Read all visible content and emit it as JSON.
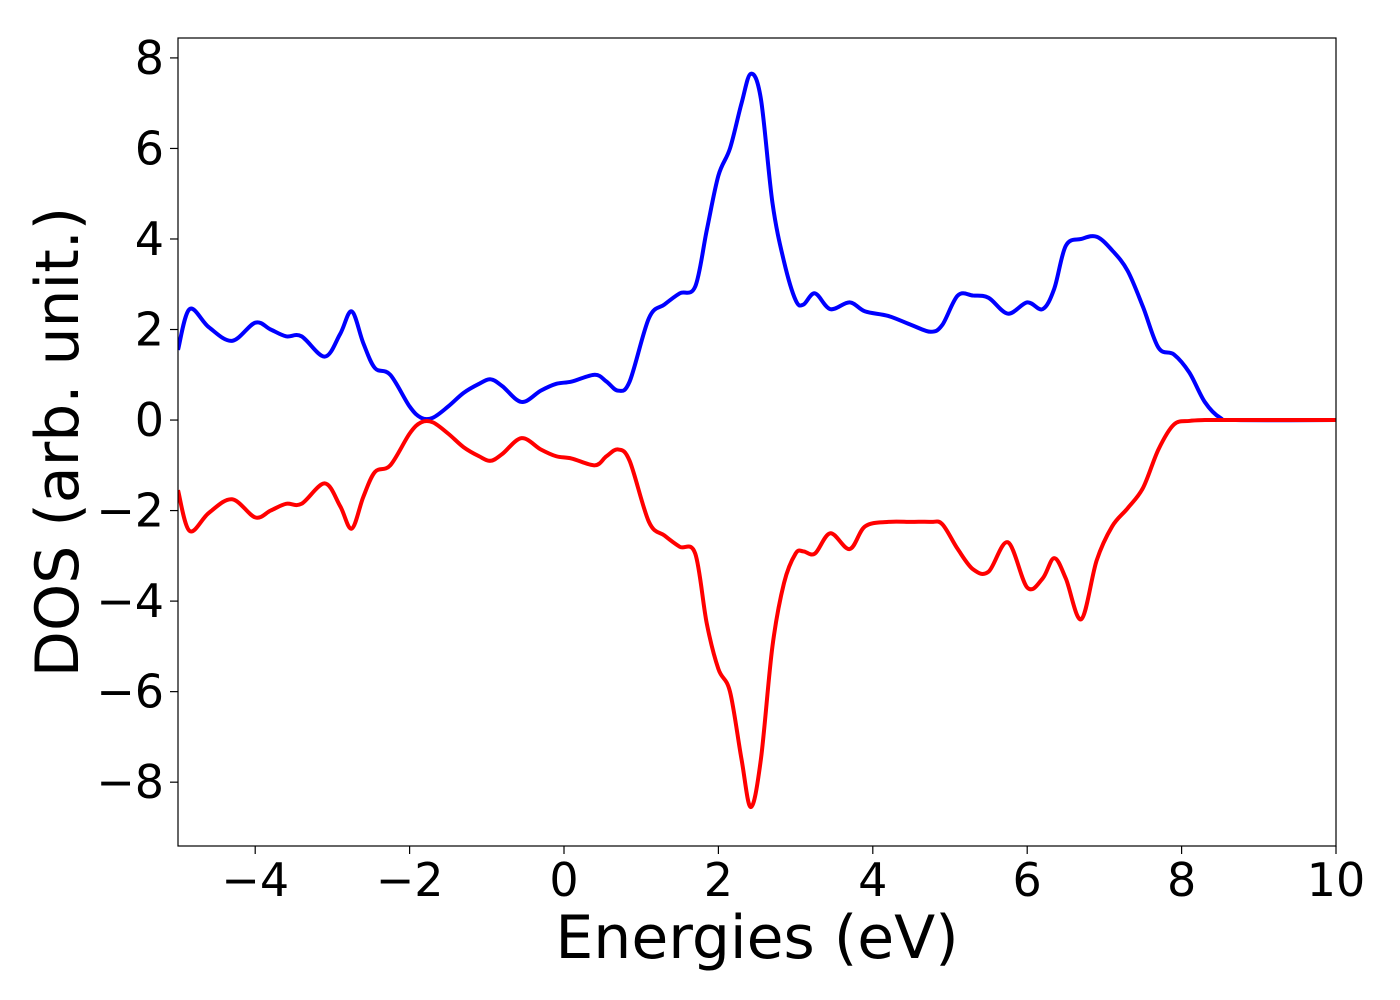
{
  "chart_data": {
    "type": "line",
    "xlabel": "Energies (eV)",
    "ylabel": "DOS (arb. unit.)",
    "xlim": [
      -5,
      10
    ],
    "ylim": [
      -9.41,
      8.44
    ],
    "xticks": [
      {
        "value": -4,
        "label": "−4"
      },
      {
        "value": -2,
        "label": "−2"
      },
      0,
      2,
      4,
      6,
      8,
      10
    ],
    "yticks": [
      {
        "value": -8,
        "label": "−8"
      },
      {
        "value": -6,
        "label": "−6"
      },
      {
        "value": -4,
        "label": "−4"
      },
      {
        "value": -2,
        "label": "−2"
      },
      0,
      2,
      4,
      6,
      8
    ],
    "grid": false,
    "x": [
      -5,
      -4.85,
      -4.6,
      -4.3,
      -4.0,
      -3.8,
      -3.6,
      -3.4,
      -3.1,
      -2.9,
      -2.75,
      -2.6,
      -2.45,
      -2.25,
      -2.0,
      -1.85,
      -1.7,
      -1.5,
      -1.3,
      -1.1,
      -0.95,
      -0.8,
      -0.55,
      -0.3,
      -0.1,
      0.1,
      0.4,
      0.55,
      0.7,
      0.85,
      1.1,
      1.3,
      1.5,
      1.7,
      1.85,
      2.0,
      2.15,
      2.3,
      2.42,
      2.55,
      2.7,
      2.85,
      3.0,
      3.1,
      3.25,
      3.45,
      3.7,
      3.9,
      4.2,
      4.5,
      4.75,
      4.9,
      5.1,
      5.3,
      5.5,
      5.75,
      6.0,
      6.2,
      6.35,
      6.5,
      6.7,
      6.9,
      7.1,
      7.3,
      7.5,
      7.7,
      7.9,
      8.1,
      8.3,
      8.5,
      8.7,
      10
    ],
    "series": [
      {
        "color": "#0000ff",
        "values": [
          1.55,
          2.45,
          2.05,
          1.75,
          2.15,
          2.0,
          1.85,
          1.85,
          1.4,
          1.9,
          2.4,
          1.7,
          1.15,
          1.0,
          0.3,
          0.05,
          0.05,
          0.3,
          0.6,
          0.8,
          0.9,
          0.75,
          0.4,
          0.65,
          0.8,
          0.85,
          1.0,
          0.85,
          0.65,
          0.85,
          2.25,
          2.55,
          2.8,
          2.95,
          4.2,
          5.4,
          6.0,
          7.0,
          7.65,
          7.1,
          4.8,
          3.5,
          2.65,
          2.55,
          2.8,
          2.45,
          2.6,
          2.4,
          2.3,
          2.1,
          1.95,
          2.1,
          2.75,
          2.75,
          2.7,
          2.35,
          2.6,
          2.45,
          2.9,
          3.85,
          4.0,
          4.05,
          3.75,
          3.3,
          2.5,
          1.6,
          1.45,
          1.05,
          0.4,
          0.05,
          0,
          0
        ]
      },
      {
        "color": "#ff0000",
        "values": [
          -1.55,
          -2.45,
          -2.05,
          -1.75,
          -2.15,
          -2.0,
          -1.85,
          -1.85,
          -1.4,
          -1.9,
          -2.4,
          -1.7,
          -1.15,
          -1.0,
          -0.3,
          -0.05,
          -0.05,
          -0.3,
          -0.6,
          -0.8,
          -0.9,
          -0.75,
          -0.4,
          -0.65,
          -0.8,
          -0.85,
          -1.0,
          -0.8,
          -0.65,
          -0.9,
          -2.25,
          -2.55,
          -2.8,
          -2.95,
          -4.5,
          -5.5,
          -6.0,
          -7.5,
          -8.55,
          -7.5,
          -5.0,
          -3.6,
          -2.95,
          -2.9,
          -2.95,
          -2.5,
          -2.85,
          -2.35,
          -2.25,
          -2.25,
          -2.25,
          -2.3,
          -2.85,
          -3.3,
          -3.35,
          -2.7,
          -3.7,
          -3.5,
          -3.05,
          -3.5,
          -4.4,
          -3.1,
          -2.35,
          -1.95,
          -1.5,
          -0.65,
          -0.1,
          -0.02,
          0,
          0,
          0,
          0
        ]
      }
    ]
  }
}
